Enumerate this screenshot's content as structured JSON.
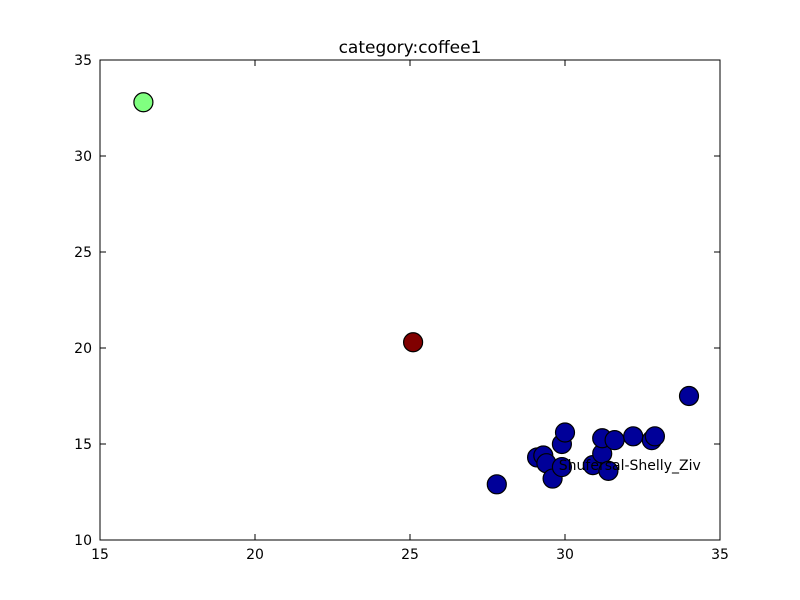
{
  "chart_data": {
    "type": "scatter",
    "title": "category:coffee1",
    "xlabel": "",
    "ylabel": "",
    "xlim": [
      15,
      35
    ],
    "ylim": [
      10,
      35
    ],
    "x_ticks": [
      15,
      20,
      25,
      30,
      35
    ],
    "y_ticks": [
      10,
      15,
      20,
      25,
      30,
      35
    ],
    "x_tick_labels": [
      "15",
      "20",
      "25",
      "30",
      "35"
    ],
    "y_tick_labels": [
      "10",
      "15",
      "20",
      "25",
      "30",
      "35"
    ],
    "grid": false,
    "legend": "none",
    "points": [
      {
        "x": 16.4,
        "y": 32.8,
        "color": "#80ff80"
      },
      {
        "x": 25.1,
        "y": 20.3,
        "color": "#800000"
      },
      {
        "x": 34.0,
        "y": 17.5,
        "color": "#000099"
      },
      {
        "x": 27.8,
        "y": 12.9,
        "color": "#000099"
      },
      {
        "x": 29.1,
        "y": 14.3,
        "color": "#000099"
      },
      {
        "x": 29.3,
        "y": 14.4,
        "color": "#000099"
      },
      {
        "x": 29.4,
        "y": 14.0,
        "color": "#000099"
      },
      {
        "x": 29.6,
        "y": 13.2,
        "color": "#000099"
      },
      {
        "x": 29.9,
        "y": 13.8,
        "color": "#000099"
      },
      {
        "x": 29.9,
        "y": 15.0,
        "color": "#000099"
      },
      {
        "x": 30.0,
        "y": 15.6,
        "color": "#000099"
      },
      {
        "x": 30.9,
        "y": 13.9,
        "color": "#000099"
      },
      {
        "x": 31.2,
        "y": 14.5,
        "color": "#000099"
      },
      {
        "x": 31.2,
        "y": 15.3,
        "color": "#000099"
      },
      {
        "x": 31.4,
        "y": 13.6,
        "color": "#000099"
      },
      {
        "x": 31.6,
        "y": 15.2,
        "color": "#000099"
      },
      {
        "x": 32.2,
        "y": 15.4,
        "color": "#000099"
      },
      {
        "x": 32.8,
        "y": 15.2,
        "color": "#000099"
      },
      {
        "x": 32.9,
        "y": 15.4,
        "color": "#000099"
      }
    ],
    "annotations": [
      {
        "text": "Shufersal-Shelly_Ziv",
        "x": 29.8,
        "y": 13.9
      }
    ]
  }
}
